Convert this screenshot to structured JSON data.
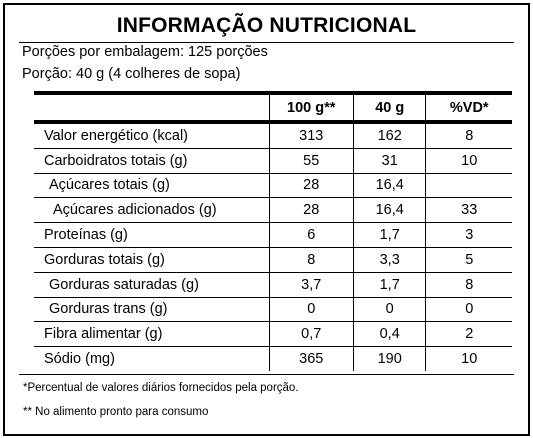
{
  "title": "INFORMAÇÃO NUTRICIONAL",
  "servings_per_package": "Porções por embalagem: 125 porções",
  "serving_size": "Porção: 40 g (4 colheres de sopa)",
  "table": {
    "headers": [
      "",
      "100 g**",
      "40 g",
      "%VD*"
    ],
    "rows": [
      {
        "name": "Valor energético (kcal)",
        "v100": "313",
        "v40": "162",
        "vd": "8"
      },
      {
        "name": "Carboidratos totais (g)",
        "v100": "55",
        "v40": "31",
        "vd": "10"
      },
      {
        "name": "Açúcares totais (g)",
        "v100": "28",
        "v40": "16,4",
        "vd": ""
      },
      {
        "name": "Açúcares adicionados (g)",
        "v100": "28",
        "v40": "16,4",
        "vd": "33"
      },
      {
        "name": "Proteínas (g)",
        "v100": "6",
        "v40": "1,7",
        "vd": "3"
      },
      {
        "name": "Gorduras totais (g)",
        "v100": "8",
        "v40": "3,3",
        "vd": "5"
      },
      {
        "name": "Gorduras saturadas (g)",
        "v100": "3,7",
        "v40": "1,7",
        "vd": "8"
      },
      {
        "name": "Gorduras trans (g)",
        "v100": "0",
        "v40": "0",
        "vd": "0"
      },
      {
        "name": "Fibra alimentar (g)",
        "v100": "0,7",
        "v40": "0,4",
        "vd": "2"
      },
      {
        "name": "Sódio (mg)",
        "v100": "365",
        "v40": "190",
        "vd": "10"
      }
    ]
  },
  "footnotes": [
    "*Percentual de valores diários fornecidos pela porção.",
    "** No alimento pronto para consumo"
  ]
}
